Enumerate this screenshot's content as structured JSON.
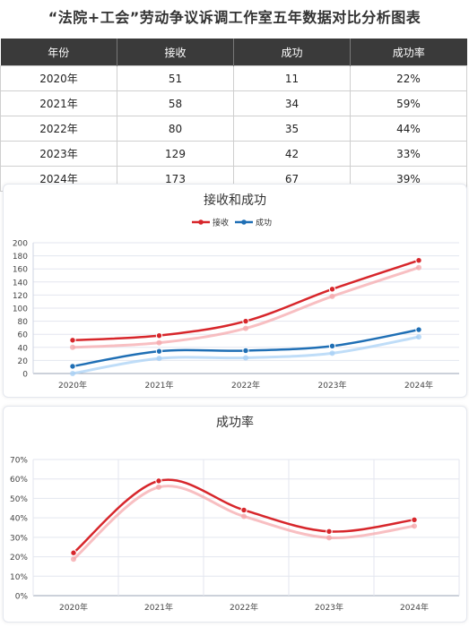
{
  "title": "“法院+工会”劳动争议诉调工作室五年数据对比分析图表",
  "table": {
    "headers": [
      "年份",
      "接收",
      "成功",
      "成功率"
    ],
    "rows": [
      [
        "2020年",
        "51",
        "11",
        "22%"
      ],
      [
        "2021年",
        "58",
        "34",
        "59%"
      ],
      [
        "2022年",
        "80",
        "35",
        "44%"
      ],
      [
        "2023年",
        "129",
        "42",
        "33%"
      ],
      [
        "2024年",
        "173",
        "67",
        "39%"
      ]
    ]
  },
  "chart_data": [
    {
      "type": "line",
      "title": "接收和成功",
      "categories": [
        "2020年",
        "2021年",
        "2022年",
        "2023年",
        "2024年"
      ],
      "series": [
        {
          "name": "接收",
          "values": [
            51,
            58,
            80,
            129,
            173
          ],
          "color": "#d7262b",
          "shadow_color": "#f5a9ad"
        },
        {
          "name": "成功",
          "values": [
            11,
            34,
            35,
            42,
            67
          ],
          "color": "#1f6fb5",
          "shadow_color": "#a9d1f5"
        }
      ],
      "ylim": [
        0,
        200
      ],
      "yticks": [
        "0",
        "20",
        "40",
        "60",
        "80",
        "100",
        "120",
        "140",
        "160",
        "180",
        "200"
      ],
      "grid": true,
      "legend": "top"
    },
    {
      "type": "line",
      "title": "成功率",
      "categories": [
        "2020年",
        "2021年",
        "2022年",
        "2023年",
        "2024年"
      ],
      "series": [
        {
          "values": [
            22,
            59,
            44,
            33,
            39
          ],
          "color": "#d7262b",
          "shadow_color": "#f5a9ad"
        }
      ],
      "ylim": [
        0,
        70
      ],
      "yticks": [
        "0%",
        "10%",
        "20%",
        "30%",
        "40%",
        "50%",
        "60%",
        "70%"
      ],
      "grid": true
    }
  ]
}
